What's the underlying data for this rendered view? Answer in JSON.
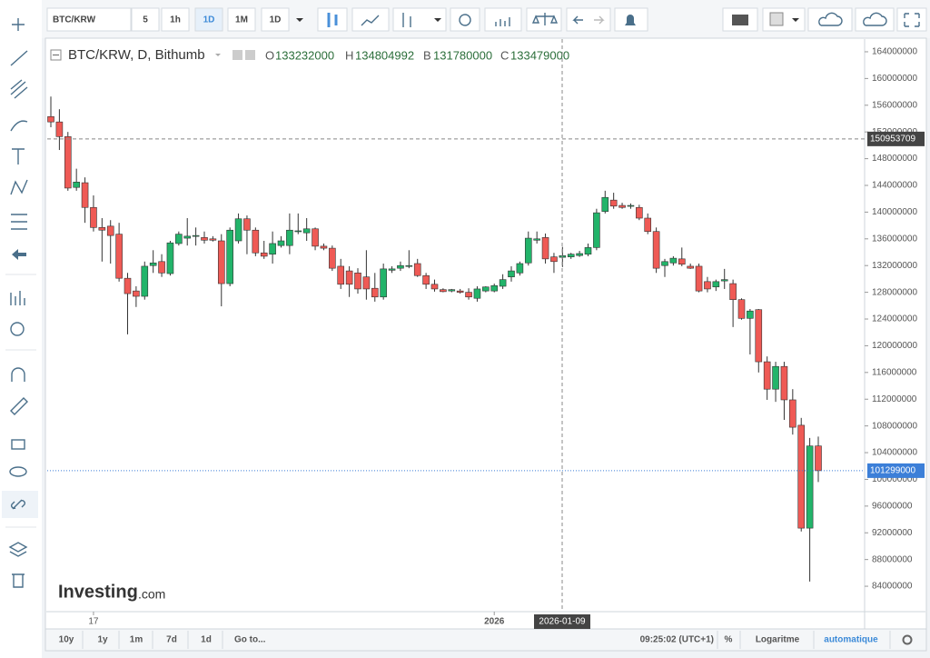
{
  "toolbar": {
    "symbol": "BTC/KRW",
    "intervals": [
      "5",
      "1h",
      "1D",
      "1M",
      "1D"
    ]
  },
  "chart_data": {
    "type": "candlestick",
    "title": "BTC/KRW, D, Bithumb",
    "ohlc_legend": [
      {
        "label": "O",
        "value": 133232000
      },
      {
        "label": "H",
        "value": 134804992
      },
      {
        "label": "B",
        "value": 131780000
      },
      {
        "label": "C",
        "value": 133479000
      }
    ],
    "categories": [
      null,
      null,
      null,
      null,
      null,
      "17",
      null,
      null,
      null,
      null,
      null,
      null,
      null,
      null,
      null,
      null,
      null,
      null,
      null,
      null,
      null,
      null,
      null,
      null,
      null,
      null,
      null,
      null,
      null,
      null,
      null,
      null,
      null,
      null,
      null,
      null,
      null,
      null,
      null,
      null,
      null,
      null,
      null,
      null,
      null,
      null,
      null,
      null,
      null,
      null,
      null,
      null,
      "2026",
      null,
      null,
      null,
      null,
      null,
      null,
      null,
      null,
      null,
      null,
      null,
      null,
      null,
      null,
      null,
      null,
      null,
      null,
      null,
      null,
      null,
      null,
      null,
      null,
      null,
      null,
      null,
      null,
      null,
      null,
      null,
      null,
      null,
      null,
      null,
      null,
      null,
      null
    ],
    "open": [
      154300000,
      153500000,
      151300000,
      143700000,
      144400000,
      140700000,
      137700000,
      137900000,
      136700000,
      130100000,
      128200000,
      127400000,
      132000000,
      132600000,
      130800000,
      135300000,
      136100000,
      136400000,
      136200000,
      136000000,
      135700000,
      129300000,
      135700000,
      139000000,
      137300000,
      133900000,
      133700000,
      135000000,
      135000000,
      137100000,
      136900000,
      137500000,
      134900000,
      134600000,
      131900000,
      131200000,
      130900000,
      130300000,
      128600000,
      127300000,
      131300000,
      131600000,
      131900000,
      132300000,
      130500000,
      129200000,
      128400000,
      128200000,
      128200000,
      128000000,
      127100000,
      128200000,
      128200000,
      128900000,
      130300000,
      130900000,
      132400000,
      135800000,
      136200000,
      133300000,
      133232000,
      133300000,
      133500000,
      133700000,
      134700000,
      140100000,
      141800000,
      141000000,
      140900000,
      140700000,
      139100000,
      137100000,
      132000000,
      132400000,
      133000000,
      131900000,
      131900000,
      129600000,
      128800000,
      129700000,
      129300000,
      126900000,
      124100000,
      125400000,
      117600000,
      113500000,
      116900000,
      111900000,
      108100000,
      92700000,
      105000000
    ],
    "high": [
      157300000,
      155400000,
      152000000,
      146500000,
      145200000,
      142500000,
      139100000,
      138800000,
      138400000,
      130900000,
      128900000,
      132600000,
      134300000,
      133700000,
      135700000,
      137100000,
      139100000,
      137700000,
      137100000,
      136400000,
      136700000,
      137700000,
      139800000,
      139500000,
      137700000,
      135700000,
      137100000,
      136400000,
      139800000,
      139800000,
      139100000,
      137700000,
      135300000,
      135000000,
      133000000,
      131900000,
      131600000,
      134300000,
      130900000,
      132300000,
      131900000,
      132600000,
      134300000,
      133000000,
      130900000,
      129900000,
      128600000,
      128500000,
      128500000,
      128600000,
      128900000,
      128900000,
      129300000,
      130700000,
      131900000,
      132600000,
      137100000,
      137100000,
      136800000,
      133900000,
      134804992,
      133900000,
      134200000,
      135300000,
      140500000,
      143200000,
      142900000,
      141400000,
      141300000,
      141100000,
      139800000,
      137700000,
      133000000,
      133400000,
      134700000,
      132300000,
      132300000,
      130300000,
      129900000,
      131500000,
      129900000,
      127100000,
      125500000,
      125500000,
      118400000,
      117600000,
      117600000,
      113500000,
      109200000,
      106200000,
      106400000
    ],
    "low": [
      152700000,
      149300000,
      143200000,
      143200000,
      138400000,
      137100000,
      132600000,
      132300000,
      129600000,
      121700000,
      125800000,
      126900000,
      130900000,
      130300000,
      130500000,
      135000000,
      135000000,
      135000000,
      135300000,
      135600000,
      125900000,
      128900000,
      135300000,
      133700000,
      133400000,
      133000000,
      132300000,
      134700000,
      133700000,
      136700000,
      135700000,
      134300000,
      134300000,
      131200000,
      128500000,
      127300000,
      127800000,
      126900000,
      126600000,
      126900000,
      130900000,
      131200000,
      131600000,
      130300000,
      128500000,
      128100000,
      128000000,
      128000000,
      127800000,
      126900000,
      126600000,
      128000000,
      128000000,
      128500000,
      129600000,
      130500000,
      132000000,
      135300000,
      132300000,
      130900000,
      131780000,
      133000000,
      133300000,
      133400000,
      134300000,
      139800000,
      140500000,
      140500000,
      140500000,
      138800000,
      136700000,
      130900000,
      130300000,
      132000000,
      131900000,
      131500000,
      128000000,
      128000000,
      128200000,
      128500000,
      122800000,
      123900000,
      118700000,
      116000000,
      111900000,
      111600000,
      108900000,
      106700000,
      92200000,
      84700000,
      99600000
    ],
    "close": [
      153500000,
      151300000,
      143600000,
      144500000,
      140700000,
      137700000,
      137300000,
      136500000,
      130100000,
      127800000,
      127400000,
      131900000,
      132400000,
      130900000,
      135400000,
      136700000,
      136400000,
      136500000,
      135800000,
      135800000,
      129300000,
      137300000,
      139000000,
      137300000,
      133900000,
      133400000,
      135300000,
      135700000,
      137300000,
      137200000,
      137500000,
      134900000,
      134600000,
      131600000,
      129200000,
      129200000,
      128500000,
      128500000,
      127300000,
      131500000,
      131500000,
      132000000,
      132000000,
      130500000,
      129200000,
      128500000,
      128100000,
      128400000,
      128000000,
      127300000,
      128500000,
      128800000,
      129000000,
      129900000,
      131200000,
      132300000,
      136100000,
      136000000,
      133000000,
      132600000,
      133479000,
      133700000,
      133800000,
      134700000,
      139900000,
      142200000,
      140900000,
      140700000,
      141000000,
      139100000,
      137100000,
      131600000,
      132600000,
      133100000,
      132200000,
      131600000,
      128200000,
      128500000,
      129600000,
      129900000,
      126900000,
      124100000,
      125200000,
      117600000,
      113500000,
      116900000,
      111900000,
      107800000,
      92700000,
      105000000,
      101299000
    ],
    "up_color": "#22b46a",
    "down_color": "#ef5a55",
    "ylim": [
      80200000,
      165900000
    ],
    "yticks": [
      84000000,
      88000000,
      92000000,
      96000000,
      100000000,
      104000000,
      108000000,
      112000000,
      116000000,
      120000000,
      124000000,
      128000000,
      132000000,
      136000000,
      140000000,
      144000000,
      148000000,
      152000000,
      156000000,
      160000000,
      164000000
    ],
    "crosshair_price": 150953709,
    "crosshair_date": "2026-01-09",
    "last_price": 101299000
  },
  "logo": {
    "name": "Investing",
    "suffix": ".com"
  },
  "bottom_bar": {
    "ranges": [
      "10y",
      "1y",
      "1m",
      "7d",
      "1d"
    ],
    "goto": "Go to...",
    "time": "09:25:02 (UTC+1)",
    "percent": "%",
    "log": "Logaritme",
    "auto": "automatique"
  }
}
